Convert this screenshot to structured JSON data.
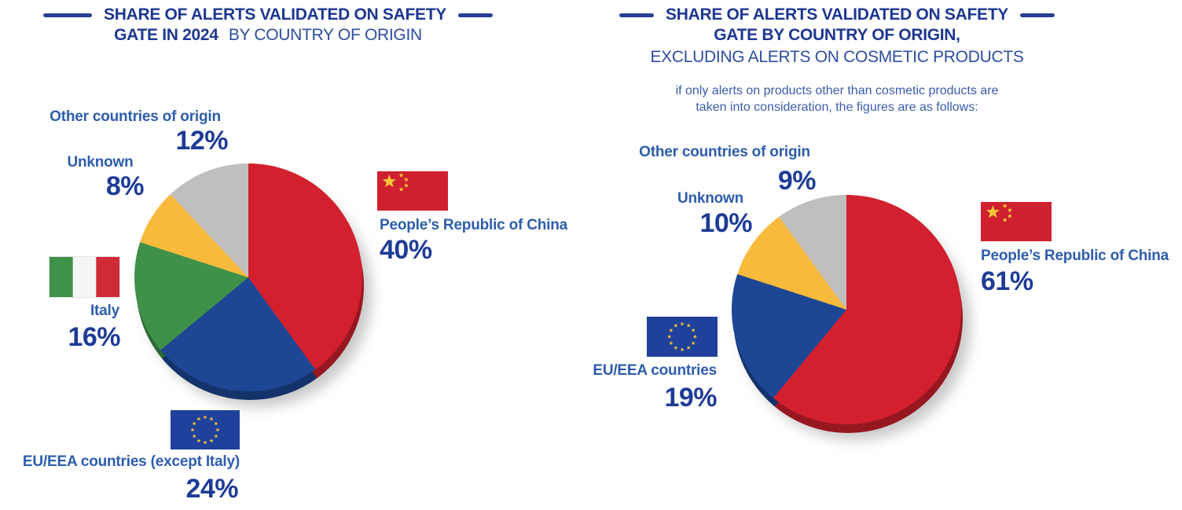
{
  "colors": {
    "title_navy": "#1d3791",
    "title_regular_blue": "#2c4da0",
    "subtitle_blue": "#3c5cab",
    "label_blue": "#2d5dad",
    "value_navy": "#1e3c96",
    "china_red": "#d2202e",
    "eu_blue": "#1d4795",
    "italy_green": "#3f9149",
    "unknown_yellow": "#f8ba3c",
    "other_gray": "#c0bfbd"
  },
  "chart_data": [
    {
      "type": "pie",
      "title_line1": "SHARE OF ALERTS VALIDATED ON SAFETY",
      "title_line2_bold": "GATE IN 2024",
      "title_line2_regular": "BY COUNTRY OF ORIGIN",
      "start_angle_deg": 0,
      "direction": "clockwise",
      "legend_position": "around-pie",
      "slices": [
        {
          "label": "People’s Republic of China",
          "value": 40,
          "value_label": "40%",
          "color": "#d2202e",
          "flag": "china"
        },
        {
          "label": "EU/EEA countries (except Italy)",
          "value": 24,
          "value_label": "24%",
          "color": "#1d4795",
          "flag": "eu"
        },
        {
          "label": "Italy",
          "value": 16,
          "value_label": "16%",
          "color": "#3f9149",
          "flag": "italy"
        },
        {
          "label": "Unknown",
          "value": 8,
          "value_label": "8%",
          "color": "#f8ba3c",
          "flag": null
        },
        {
          "label": "Other countries of origin",
          "value": 12,
          "value_label": "12%",
          "color": "#c0bfbd",
          "flag": null
        }
      ]
    },
    {
      "type": "pie",
      "title_line1": "SHARE OF ALERTS VALIDATED ON SAFETY",
      "title_line2_bold": "GATE BY COUNTRY OF ORIGIN,",
      "title_line3_regular": "EXCLUDING ALERTS ON COSMETIC PRODUCTS",
      "subtitle_line1": "if only alerts on products other than cosmetic products are",
      "subtitle_line2": "taken into consideration, the figures are as follows:",
      "start_angle_deg": 0,
      "direction": "clockwise",
      "legend_position": "around-pie",
      "slices": [
        {
          "label": "People’s Republic of China",
          "value": 61,
          "value_label": "61%",
          "color": "#d2202e",
          "flag": "china"
        },
        {
          "label": "EU/EEA countries",
          "value": 19,
          "value_label": "19%",
          "color": "#1d4795",
          "flag": "eu"
        },
        {
          "label": "Unknown",
          "value": 10,
          "value_label": "10%",
          "color": "#f8ba3c",
          "flag": null
        },
        {
          "label": "Other countries of origin",
          "value": 9,
          "value_label": "9%",
          "color": "#c0bfbd",
          "flag": null
        }
      ]
    }
  ]
}
